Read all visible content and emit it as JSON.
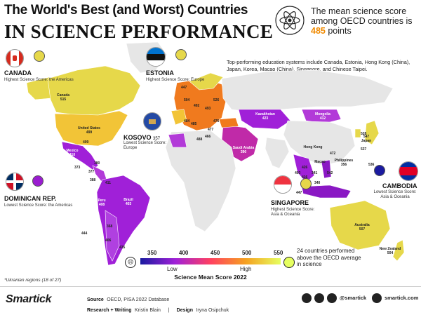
{
  "title": {
    "line1": "The World's Best (and Worst) Countries",
    "line2": "IN SCIENCE PERFORMANCE"
  },
  "oecd": {
    "text": "The mean science score among OECD countries is",
    "value": "485",
    "unit": "points"
  },
  "note": "Top-performing education systems include Canada, Estonia, Hong Kong (China), Japan, Korea, Macao (China), Singapore, and Chinese Taipei.",
  "callouts": {
    "canada": {
      "name": "CANADA",
      "sub": "Highest Science Score: the Americas"
    },
    "estonia": {
      "name": "ESTONIA",
      "sub": "Highest Science Score: Europe"
    },
    "kosovo": {
      "name": "KOSOVO",
      "score": "357",
      "sub": "Lowest Science Score: Europe"
    },
    "dominican": {
      "name": "DOMINICAN REP.",
      "sub": "Lowest Science Score: the Americas"
    },
    "singapore": {
      "name": "SINGAPORE",
      "sub": "Highest Science Score: Asia & Oceania"
    },
    "cambodia": {
      "name": "CAMBODIA",
      "sub": "Lowest Science Score: Asia & Oceania"
    }
  },
  "countries": {
    "canada": {
      "name": "Canada",
      "score": "515"
    },
    "us": {
      "name": "United States",
      "score": "499"
    },
    "mexico": {
      "name": "Mexico",
      "score": "410"
    },
    "brazil": {
      "name": "Brazil",
      "score": "403"
    },
    "peru": {
      "name": "Peru",
      "score": "408"
    },
    "kazakhstan": {
      "name": "Kazakhstan",
      "score": "423"
    },
    "mongolia": {
      "name": "Mongolia",
      "score": "412"
    },
    "saudi": {
      "name": "Saudi Arabia",
      "score": "390"
    },
    "australia": {
      "name": "Australia",
      "score": "507"
    },
    "nz": {
      "name": "New Zealand",
      "score": "504"
    },
    "indonesia": {
      "name": "Indonesia",
      "score": "383"
    },
    "japan": {
      "name": "Japan",
      "score": "547"
    },
    "hongkong": {
      "name": "Hong Kong",
      "score": "520"
    },
    "macao": {
      "name": "Macao",
      "score": "543"
    },
    "philippines": {
      "name": "Philippines",
      "score": "356"
    }
  },
  "map_numbers": [
    "447",
    "504",
    "526",
    "492",
    "493",
    "484",
    "485",
    "477",
    "466",
    "476",
    "488",
    "373",
    "377",
    "380",
    "388",
    "411",
    "444",
    "406",
    "435",
    "368",
    "409",
    "536",
    "528",
    "537",
    "472",
    "416",
    "501",
    "403",
    "447",
    "426",
    "341",
    "340",
    "542"
  ],
  "legend": {
    "ticks": [
      "350",
      "400",
      "450",
      "500",
      "550"
    ],
    "low": "Low",
    "high": "High",
    "title": "Science Mean Score 2022"
  },
  "oecd_note": "24 countries performed above the OECD average in science",
  "ukraine_note": "*Ukranian regions (18 of 27)",
  "footer": {
    "brand": "Smartick",
    "source_label": "Source",
    "source": "OECD, PISA 2022 Database",
    "research_label": "Research + Writing",
    "research": "Kristin Blain",
    "design_label": "Design",
    "design": "Iryna Osipchuk",
    "site": "smartick.com"
  },
  "colors": {
    "accent": "#f08a00",
    "purple_low": "#a020d8",
    "yellow_high": "#e6d84a",
    "orange_mid": "#f07a1e"
  }
}
